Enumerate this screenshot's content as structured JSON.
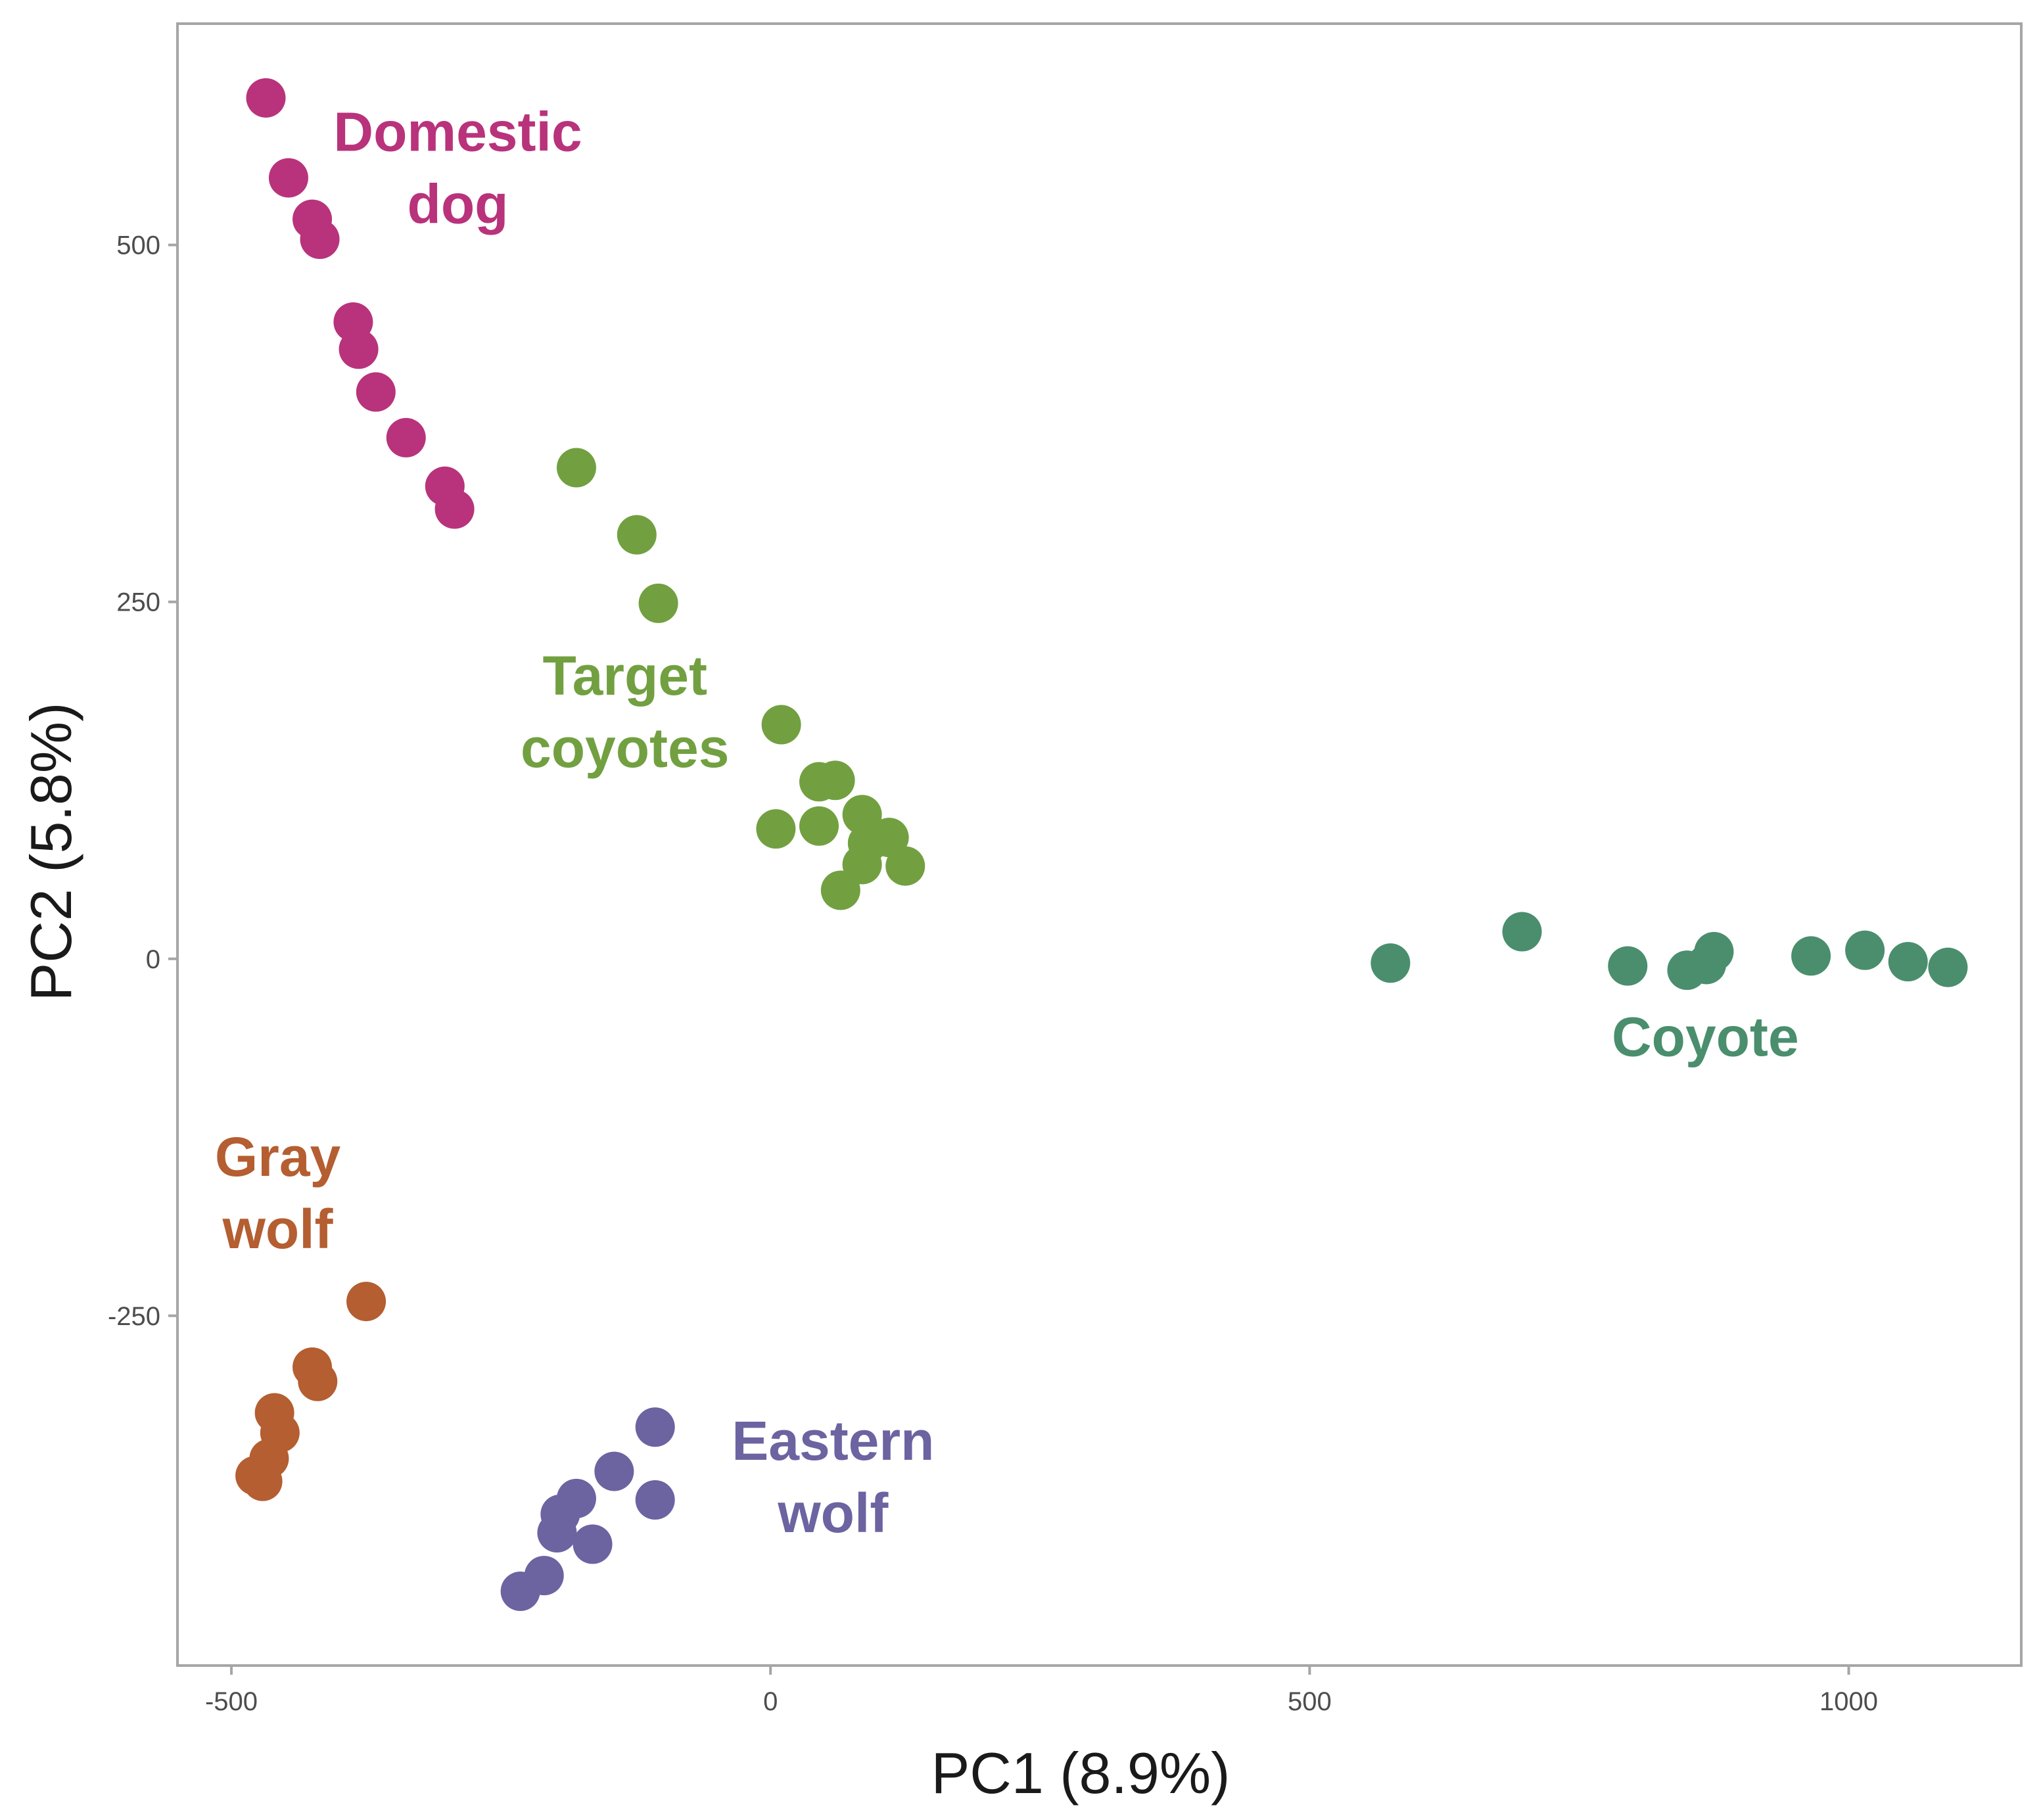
{
  "chart_data": {
    "type": "scatter",
    "title": "",
    "xlabel": "PC1 (8.9%)",
    "ylabel": "PC2 (5.8%)",
    "xlim": [
      -550,
      1160
    ],
    "ylim": [
      -495,
      655
    ],
    "xticks": [
      -500,
      0,
      500,
      1000
    ],
    "yticks": [
      -250,
      0,
      250,
      500
    ],
    "xtick_labels": [
      "-500",
      "0",
      "500",
      "1000"
    ],
    "ytick_labels": [
      "-250",
      "0",
      "250",
      "500"
    ],
    "grid": false,
    "series": [
      {
        "name": "Domestic dog",
        "label_lines": [
          "Domestic",
          "dog"
        ],
        "color": "#B8337B",
        "points": [
          [
            -468,
            603
          ],
          [
            -447,
            547
          ],
          [
            -425,
            518
          ],
          [
            -418,
            504
          ],
          [
            -387,
            446
          ],
          [
            -382,
            427
          ],
          [
            -366,
            397
          ],
          [
            -338,
            365
          ],
          [
            -302,
            331
          ],
          [
            -293,
            315
          ]
        ]
      },
      {
        "name": "Target coyotes",
        "label_lines": [
          "Target",
          "coyotes"
        ],
        "color": "#72A041",
        "points": [
          [
            -180,
            344
          ],
          [
            -124,
            297
          ],
          [
            -104,
            249
          ],
          [
            10,
            164
          ],
          [
            5,
            91
          ],
          [
            45,
            93
          ],
          [
            45,
            124
          ],
          [
            60,
            125
          ],
          [
            85,
            101
          ],
          [
            90,
            81
          ],
          [
            110,
            85
          ],
          [
            85,
            66
          ],
          [
            125,
            65
          ],
          [
            65,
            48
          ]
        ]
      },
      {
        "name": "Coyote",
        "label_lines": [
          "Coyote"
        ],
        "color": "#4A8E6E",
        "points": [
          [
            575,
            -3
          ],
          [
            697,
            19
          ],
          [
            795,
            -5
          ],
          [
            850,
            -8
          ],
          [
            868,
            -4
          ],
          [
            875,
            5
          ],
          [
            965,
            2
          ],
          [
            1015,
            6
          ],
          [
            1055,
            -2
          ],
          [
            1092,
            -6
          ]
        ]
      },
      {
        "name": "Gray wolf",
        "label_lines": [
          "Gray",
          "wolf"
        ],
        "color": "#B45E31",
        "points": [
          [
            -375,
            -240
          ],
          [
            -425,
            -286
          ],
          [
            -420,
            -296
          ],
          [
            -460,
            -318
          ],
          [
            -455,
            -332
          ],
          [
            -465,
            -350
          ],
          [
            -478,
            -362
          ],
          [
            -471,
            -366
          ]
        ]
      },
      {
        "name": "Eastern wolf",
        "label_lines": [
          "Eastern",
          "wolf"
        ],
        "color": "#6C63A1",
        "points": [
          [
            -107,
            -328
          ],
          [
            -145,
            -359
          ],
          [
            -107,
            -379
          ],
          [
            -180,
            -378
          ],
          [
            -195,
            -389
          ],
          [
            -198,
            -402
          ],
          [
            -165,
            -410
          ],
          [
            -210,
            -432
          ],
          [
            -232,
            -443
          ]
        ]
      }
    ]
  }
}
